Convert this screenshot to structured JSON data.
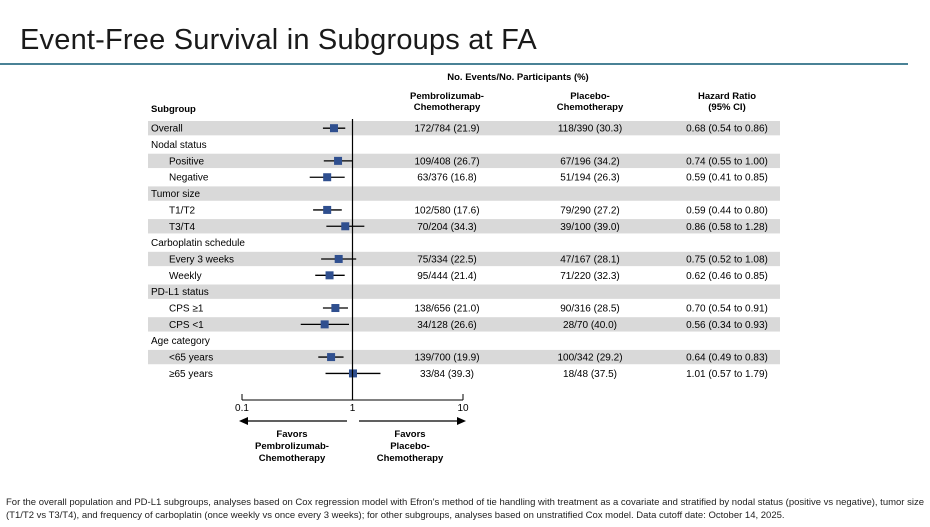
{
  "title": "Event-Free Survival in Subgroups at FA",
  "footnote": "For the overall population and PD-L1 subgroups, analyses based on Cox regression model with Efron's method of tie handling with treatment as a covariate and stratified by nodal status (positive vs negative), tumor size (T1/T2 vs T3/T4), and frequency of carboplatin (once weekly vs once every 3 weeks); for other subgroups, analyses based on unstratified Cox model. Data cutoff date: October 14, 2025.",
  "headers": {
    "events_group": "No. Events/No. Participants (%)",
    "subgroup": "Subgroup",
    "arm1": [
      "Pembrolizumab-",
      "Chemotherapy"
    ],
    "arm2": [
      "Placebo-",
      "Chemotherapy"
    ],
    "hr": [
      "Hazard Ratio",
      "(95% CI)"
    ]
  },
  "favors_left": [
    "Favors",
    "Pembrolizumab-",
    "Chemotherapy"
  ],
  "favors_right": [
    "Favors",
    "Placebo-",
    "Chemotherapy"
  ],
  "colors": {
    "marker": "#2f4f8f",
    "shade": "#d9d9d9",
    "line": "#000000"
  },
  "chart_data": {
    "type": "forest",
    "x_scale": "log",
    "xlim": [
      0.1,
      10
    ],
    "x_ticks": [
      0.1,
      1,
      10
    ],
    "x_tick_labels": [
      "0.1",
      "1",
      "10"
    ],
    "reference_line": 1,
    "rows": [
      {
        "label": "Overall",
        "indent": 0,
        "header": false,
        "shaded": true,
        "arm1": "172/784 (21.9)",
        "arm2": "118/390 (30.3)",
        "hr_text": "0.68 (0.54 to 0.86)",
        "hr": 0.68,
        "lo": 0.54,
        "hi": 0.86
      },
      {
        "label": "Nodal status",
        "indent": 0,
        "header": true,
        "shaded": false
      },
      {
        "label": "Positive",
        "indent": 1,
        "header": false,
        "shaded": true,
        "arm1": "109/408 (26.7)",
        "arm2": "67/196 (34.2)",
        "hr_text": "0.74 (0.55 to 1.00)",
        "hr": 0.74,
        "lo": 0.55,
        "hi": 1.0
      },
      {
        "label": "Negative",
        "indent": 1,
        "header": false,
        "shaded": false,
        "arm1": "63/376 (16.8)",
        "arm2": "51/194 (26.3)",
        "hr_text": "0.59 (0.41 to 0.85)",
        "hr": 0.59,
        "lo": 0.41,
        "hi": 0.85
      },
      {
        "label": "Tumor size",
        "indent": 0,
        "header": true,
        "shaded": true
      },
      {
        "label": "T1/T2",
        "indent": 1,
        "header": false,
        "shaded": false,
        "arm1": "102/580 (17.6)",
        "arm2": "79/290 (27.2)",
        "hr_text": "0.59 (0.44 to 0.80)",
        "hr": 0.59,
        "lo": 0.44,
        "hi": 0.8
      },
      {
        "label": "T3/T4",
        "indent": 1,
        "header": false,
        "shaded": true,
        "arm1": "70/204 (34.3)",
        "arm2": "39/100 (39.0)",
        "hr_text": "0.86 (0.58 to 1.28)",
        "hr": 0.86,
        "lo": 0.58,
        "hi": 1.28
      },
      {
        "label": "Carboplatin schedule",
        "indent": 0,
        "header": true,
        "shaded": false
      },
      {
        "label": "Every 3 weeks",
        "indent": 1,
        "header": false,
        "shaded": true,
        "arm1": "75/334 (22.5)",
        "arm2": "47/167 (28.1)",
        "hr_text": "0.75 (0.52 to 1.08)",
        "hr": 0.75,
        "lo": 0.52,
        "hi": 1.08
      },
      {
        "label": "Weekly",
        "indent": 1,
        "header": false,
        "shaded": false,
        "arm1": "95/444 (21.4)",
        "arm2": "71/220 (32.3)",
        "hr_text": "0.62 (0.46 to 0.85)",
        "hr": 0.62,
        "lo": 0.46,
        "hi": 0.85
      },
      {
        "label": "PD-L1 status",
        "indent": 0,
        "header": true,
        "shaded": true
      },
      {
        "label": "CPS ≥1",
        "indent": 1,
        "header": false,
        "shaded": false,
        "arm1": "138/656 (21.0)",
        "arm2": "90/316 (28.5)",
        "hr_text": "0.70 (0.54 to 0.91)",
        "hr": 0.7,
        "lo": 0.54,
        "hi": 0.91
      },
      {
        "label": "CPS <1",
        "indent": 1,
        "header": false,
        "shaded": true,
        "arm1": "34/128 (26.6)",
        "arm2": "28/70 (40.0)",
        "hr_text": "0.56 (0.34 to 0.93)",
        "hr": 0.56,
        "lo": 0.34,
        "hi": 0.93
      },
      {
        "label": "Age category",
        "indent": 0,
        "header": true,
        "shaded": false
      },
      {
        "label": "<65 years",
        "indent": 1,
        "header": false,
        "shaded": true,
        "arm1": "139/700 (19.9)",
        "arm2": "100/342 (29.2)",
        "hr_text": "0.64 (0.49 to 0.83)",
        "hr": 0.64,
        "lo": 0.49,
        "hi": 0.83
      },
      {
        "label": "≥65 years",
        "indent": 1,
        "header": false,
        "shaded": false,
        "arm1": "33/84 (39.3)",
        "arm2": "18/48 (37.5)",
        "hr_text": "1.01 (0.57 to 1.79)",
        "hr": 1.01,
        "lo": 0.57,
        "hi": 1.79
      }
    ]
  }
}
